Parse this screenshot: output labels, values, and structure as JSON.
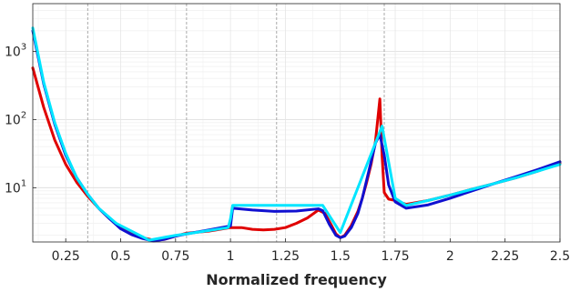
{
  "chart_data": {
    "type": "line",
    "title": "",
    "xlabel": "Normalized frequency",
    "ylabel": "",
    "xlim": [
      0.1,
      2.5
    ],
    "ylim": [
      1.6,
      5000
    ],
    "yscale": "log",
    "grid": true,
    "legend": "none",
    "x_ticks": [
      {
        "value": 0.25,
        "label": "0.25"
      },
      {
        "value": 0.5,
        "label": "0.5"
      },
      {
        "value": 0.75,
        "label": "0.75"
      },
      {
        "value": 1,
        "label": "1"
      },
      {
        "value": 1.25,
        "label": "1.25"
      },
      {
        "value": 1.5,
        "label": "1.5"
      },
      {
        "value": 1.75,
        "label": "1.75"
      },
      {
        "value": 2,
        "label": "2"
      },
      {
        "value": 2.25,
        "label": "2.25"
      },
      {
        "value": 2.5,
        "label": "2.5"
      }
    ],
    "y_ticks": [
      {
        "value": 10,
        "base": "10",
        "exp": "1"
      },
      {
        "value": 100,
        "base": "10",
        "exp": "2"
      },
      {
        "value": 1000,
        "base": "10",
        "exp": "3"
      }
    ],
    "vlines": [
      0.35,
      0.8,
      1.21,
      1.7
    ],
    "series": [
      {
        "color": "#e00000",
        "x": [
          0.1,
          0.15,
          0.2,
          0.25,
          0.3,
          0.35,
          0.4,
          0.45,
          0.5,
          0.55,
          0.6,
          0.65,
          0.7,
          0.75,
          0.8,
          0.9,
          1.0,
          1.05,
          1.1,
          1.15,
          1.2,
          1.25,
          1.3,
          1.35,
          1.4,
          1.43,
          1.46,
          1.48,
          1.5,
          1.52,
          1.55,
          1.58,
          1.6,
          1.62,
          1.64,
          1.66,
          1.68,
          1.69,
          1.7,
          1.72,
          1.75,
          1.8,
          1.9,
          2.0,
          2.1,
          2.2,
          2.3,
          2.4,
          2.5
        ],
        "y": [
          570,
          150,
          50,
          22,
          12,
          7.5,
          5,
          3.5,
          2.6,
          2.1,
          1.85,
          1.7,
          1.75,
          1.95,
          2.15,
          2.3,
          2.6,
          2.6,
          2.45,
          2.4,
          2.45,
          2.6,
          3.0,
          3.6,
          4.7,
          4.2,
          2.8,
          2.1,
          1.85,
          2.0,
          2.8,
          4.5,
          7.0,
          12,
          22,
          48,
          200,
          30,
          8.5,
          6.8,
          6.5,
          5.7,
          6.5,
          7.8,
          9.5,
          11.5,
          14,
          17.5,
          23
        ]
      },
      {
        "color": "#1010d0",
        "x": [
          0.1,
          0.15,
          0.2,
          0.25,
          0.3,
          0.35,
          0.4,
          0.45,
          0.5,
          0.55,
          0.6,
          0.65,
          0.7,
          0.75,
          0.8,
          0.9,
          1.0,
          1.01,
          1.1,
          1.2,
          1.3,
          1.4,
          1.42,
          1.45,
          1.48,
          1.5,
          1.52,
          1.55,
          1.58,
          1.6,
          1.62,
          1.64,
          1.66,
          1.68,
          1.7,
          1.72,
          1.75,
          1.8,
          1.9,
          2.0,
          2.1,
          2.2,
          2.3,
          2.4,
          2.5
        ],
        "y": [
          2000,
          330,
          85,
          30,
          14,
          8,
          5,
          3.5,
          2.5,
          2.05,
          1.8,
          1.65,
          1.75,
          1.95,
          2.1,
          2.4,
          2.75,
          5.0,
          4.7,
          4.5,
          4.55,
          4.9,
          4.6,
          2.9,
          2.0,
          1.85,
          1.95,
          2.6,
          4.2,
          7.0,
          13,
          24,
          45,
          60,
          30,
          11,
          6.2,
          5.0,
          5.6,
          7.0,
          9.0,
          11.5,
          14.5,
          18.5,
          24
        ]
      },
      {
        "color": "#00e5ff",
        "x": [
          0.1,
          0.15,
          0.2,
          0.25,
          0.3,
          0.35,
          0.4,
          0.48,
          0.63,
          0.75,
          0.8,
          0.9,
          0.99,
          1.0,
          1.01,
          1.1,
          1.2,
          1.3,
          1.42,
          1.5,
          1.69,
          1.75,
          1.8,
          1.9,
          2.0,
          2.1,
          2.2,
          2.3,
          2.4,
          2.5
        ],
        "y": [
          2200,
          350,
          90,
          32,
          14,
          8,
          5,
          3.0,
          1.7,
          2.0,
          2.1,
          2.35,
          2.6,
          3.5,
          5.5,
          5.5,
          5.5,
          5.5,
          5.5,
          2.2,
          80,
          7.0,
          5.5,
          6.5,
          7.8,
          9.5,
          11.5,
          14,
          17.5,
          22
        ]
      }
    ]
  }
}
